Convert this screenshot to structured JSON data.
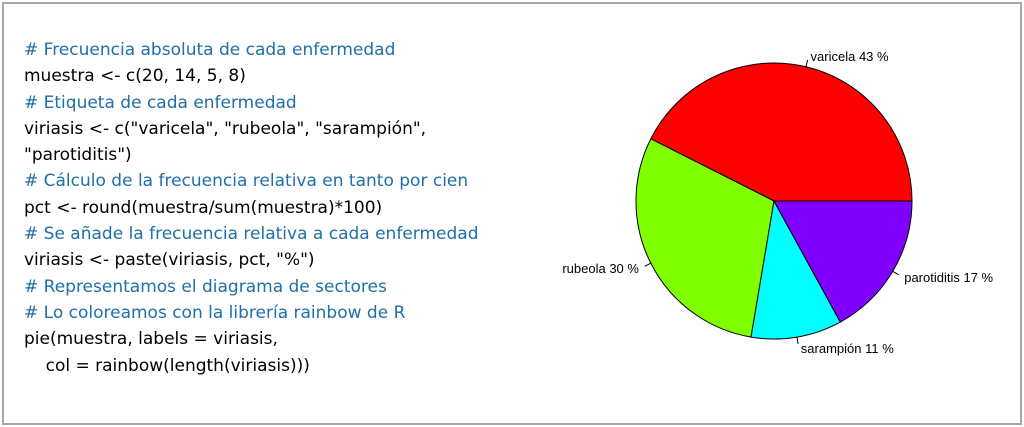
{
  "code_lines": [
    {
      "type": "comment",
      "text": "# Frecuencia absoluta de cada enfermedad"
    },
    {
      "type": "code",
      "text": "muestra <- c(20, 14, 5, 8)"
    },
    {
      "type": "comment",
      "text": "# Etiqueta de cada enfermedad"
    },
    {
      "type": "code",
      "text": "viriasis <- c(\"varicela\", \"rubeola\", \"sarampión\","
    },
    {
      "type": "code",
      "text": "\"parotiditis\")"
    },
    {
      "type": "comment",
      "text": "# Cálculo de la frecuencia relativa en tanto por cien"
    },
    {
      "type": "code",
      "text": "pct <- round(muestra/sum(muestra)*100)"
    },
    {
      "type": "comment",
      "text": "# Se añade la frecuencia relativa a cada enfermedad"
    },
    {
      "type": "code",
      "text": "viriasis <- paste(viriasis, pct, \"%\")"
    },
    {
      "type": "comment",
      "text": "# Representamos el diagrama de sectores"
    },
    {
      "type": "comment",
      "text": "# Lo coloreamos con la librería rainbow de R"
    },
    {
      "type": "code",
      "text": "pie(muestra, labels = viriasis,"
    },
    {
      "type": "code",
      "text": "    col = rainbow(length(viriasis)))"
    }
  ],
  "colors": {
    "comment": "#1f6fa8",
    "code": "#000000",
    "frame_border": "#a6a6a6"
  },
  "chart_data": {
    "type": "pie",
    "categories": [
      "varicela 43 %",
      "rubeola 30 %",
      "sarampión 11 %",
      "parotiditis 17 %"
    ],
    "values": [
      20,
      14,
      5,
      8
    ],
    "colors": [
      "#ff0000",
      "#80ff00",
      "#00ffff",
      "#8000ff"
    ],
    "start": "3 o'clock, counter-clockwise"
  }
}
